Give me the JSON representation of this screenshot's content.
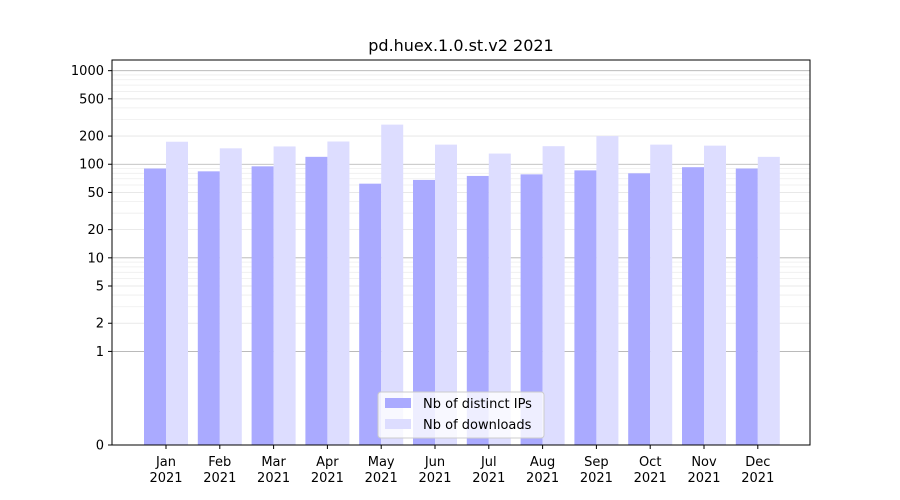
{
  "chart_data": {
    "type": "bar",
    "title": "pd.huex.1.0.st.v2 2021",
    "xlabel": "",
    "ylabel": "",
    "yscale": "symlog",
    "ylim": [
      0,
      1300
    ],
    "yticks": [
      0,
      1,
      2,
      5,
      10,
      20,
      50,
      100,
      200,
      500,
      1000
    ],
    "categories": [
      [
        "Jan",
        "2021"
      ],
      [
        "Feb",
        "2021"
      ],
      [
        "Mar",
        "2021"
      ],
      [
        "Apr",
        "2021"
      ],
      [
        "May",
        "2021"
      ],
      [
        "Jun",
        "2021"
      ],
      [
        "Jul",
        "2021"
      ],
      [
        "Aug",
        "2021"
      ],
      [
        "Sep",
        "2021"
      ],
      [
        "Oct",
        "2021"
      ],
      [
        "Nov",
        "2021"
      ],
      [
        "Dec",
        "2021"
      ]
    ],
    "series": [
      {
        "name": "Nb of distinct IPs",
        "color": "#aaaaff",
        "values": [
          90,
          84,
          95,
          120,
          62,
          68,
          75,
          78,
          86,
          80,
          93,
          90
        ]
      },
      {
        "name": "Nb of downloads",
        "color": "#ddddff",
        "values": [
          174,
          148,
          155,
          175,
          265,
          162,
          130,
          156,
          200,
          162,
          158,
          120
        ]
      }
    ],
    "legend": "bottom-center",
    "grid": true
  }
}
